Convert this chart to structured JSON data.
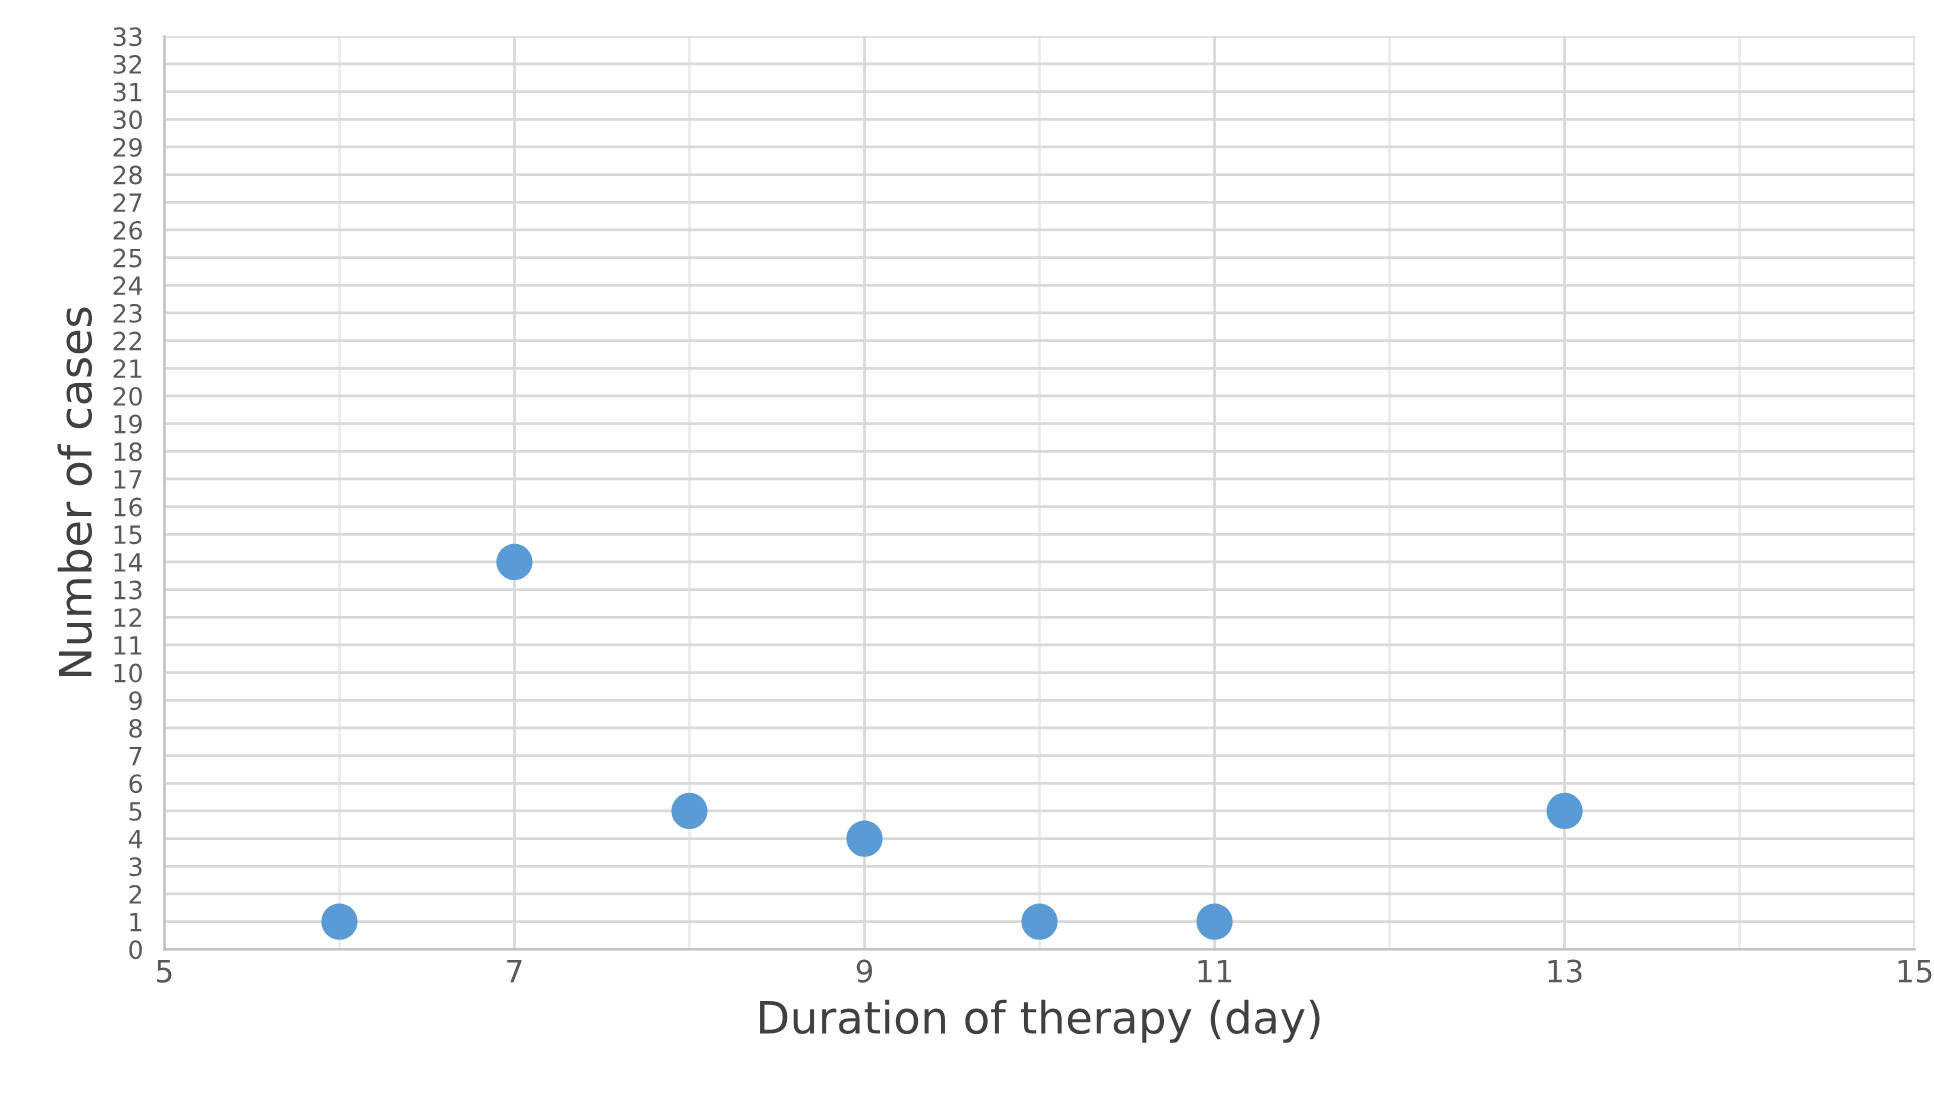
{
  "chart_data": {
    "type": "scatter",
    "xlabel": "Duration of therapy (day)",
    "ylabel": "Number of cases",
    "x": [
      6,
      7,
      8,
      9,
      10,
      11,
      13
    ],
    "series": [
      {
        "color": "#5b9bd5",
        "values": [
          1,
          14,
          5,
          4,
          1,
          1,
          5
        ]
      }
    ],
    "xlim": [
      5,
      15
    ],
    "xticks": [
      5,
      {
        "value": 6,
        "label": null
      },
      7,
      {
        "value": 8,
        "label": null
      },
      9,
      {
        "value": 10,
        "label": null
      },
      11,
      {
        "value": 12,
        "label": null
      },
      13,
      {
        "value": 14,
        "label": null
      },
      15
    ],
    "ylim": [
      0,
      33
    ],
    "yticks": [
      0,
      1,
      2,
      3,
      4,
      5,
      6,
      7,
      8,
      9,
      10,
      11,
      12,
      13,
      14,
      15,
      16,
      17,
      18,
      19,
      20,
      21,
      22,
      23,
      24,
      25,
      26,
      27,
      28,
      29,
      30,
      31,
      32,
      33
    ],
    "grid": true,
    "marker": "circle"
  }
}
